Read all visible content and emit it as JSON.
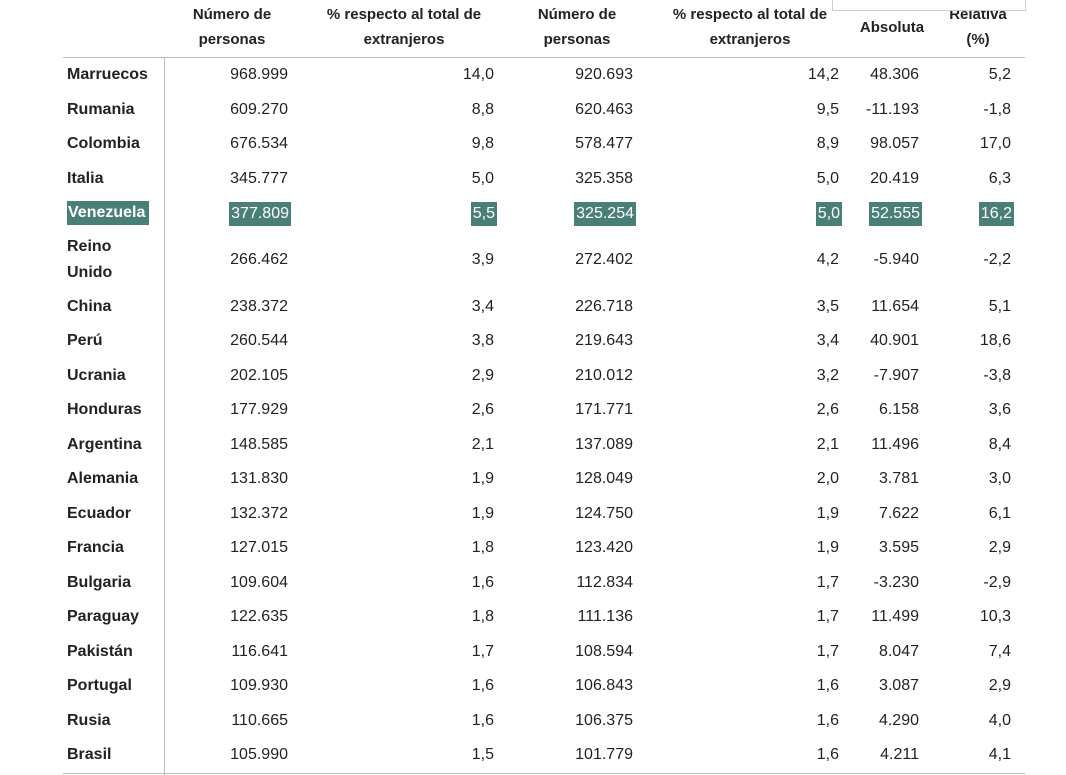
{
  "header": {
    "columns": [
      "Número de personas",
      "% respecto al total de extranjeros",
      "Número de personas",
      "% respecto al total de extranjeros",
      "Absoluta",
      "Relativa (%)"
    ]
  },
  "table": {
    "highlight_color": "#4a7f78",
    "rows": [
      {
        "cells": [
          "Marruecos",
          "968.999",
          "14,0",
          "920.693",
          "14,2",
          "48.306",
          "5,2"
        ]
      },
      {
        "cells": [
          "Rumania",
          "609.270",
          "8,8",
          "620.463",
          "9,5",
          "-11.193",
          "-1,8"
        ]
      },
      {
        "cells": [
          "Colombia",
          "676.534",
          "9,8",
          "578.477",
          "8,9",
          "98.057",
          "17,0"
        ]
      },
      {
        "cells": [
          "Italia",
          "345.777",
          "5,0",
          "325.358",
          "5,0",
          "20.419",
          "6,3"
        ]
      },
      {
        "cells": [
          "Venezuela",
          "377.809",
          "5,5",
          "325.254",
          "5,0",
          "52.555",
          "16,2"
        ],
        "highlight": true
      },
      {
        "cells": [
          "Reino Unido",
          "266.462",
          "3,9",
          "272.402",
          "4,2",
          "-5.940",
          "-2,2"
        ]
      },
      {
        "cells": [
          "China",
          "238.372",
          "3,4",
          "226.718",
          "3,5",
          "11.654",
          "5,1"
        ]
      },
      {
        "cells": [
          "Perú",
          "260.544",
          "3,8",
          "219.643",
          "3,4",
          "40.901",
          "18,6"
        ]
      },
      {
        "cells": [
          "Ucrania",
          "202.105",
          "2,9",
          "210.012",
          "3,2",
          "-7.907",
          "-3,8"
        ]
      },
      {
        "cells": [
          "Honduras",
          "177.929",
          "2,6",
          "171.771",
          "2,6",
          "6.158",
          "3,6"
        ]
      },
      {
        "cells": [
          "Argentina",
          "148.585",
          "2,1",
          "137.089",
          "2,1",
          "11.496",
          "8,4"
        ]
      },
      {
        "cells": [
          "Alemania",
          "131.830",
          "1,9",
          "128.049",
          "2,0",
          "3.781",
          "3,0"
        ]
      },
      {
        "cells": [
          "Ecuador",
          "132.372",
          "1,9",
          "124.750",
          "1,9",
          "7.622",
          "6,1"
        ]
      },
      {
        "cells": [
          "Francia",
          "127.015",
          "1,8",
          "123.420",
          "1,9",
          "3.595",
          "2,9"
        ]
      },
      {
        "cells": [
          "Bulgaria",
          "109.604",
          "1,6",
          "112.834",
          "1,7",
          "-3.230",
          "-2,9"
        ]
      },
      {
        "cells": [
          "Paraguay",
          "122.635",
          "1,8",
          "111.136",
          "1,7",
          "11.499",
          "10,3"
        ]
      },
      {
        "cells": [
          "Pakistán",
          "116.641",
          "1,7",
          "108.594",
          "1,7",
          "8.047",
          "7,4"
        ]
      },
      {
        "cells": [
          "Portugal",
          "109.930",
          "1,6",
          "106.843",
          "1,6",
          "3.087",
          "2,9"
        ]
      },
      {
        "cells": [
          "Rusia",
          "110.665",
          "1,6",
          "106.375",
          "1,6",
          "4.290",
          "4,0"
        ]
      },
      {
        "cells": [
          "Brasil",
          "105.990",
          "1,5",
          "101.779",
          "1,6",
          "4.211",
          "4,1"
        ]
      }
    ]
  }
}
